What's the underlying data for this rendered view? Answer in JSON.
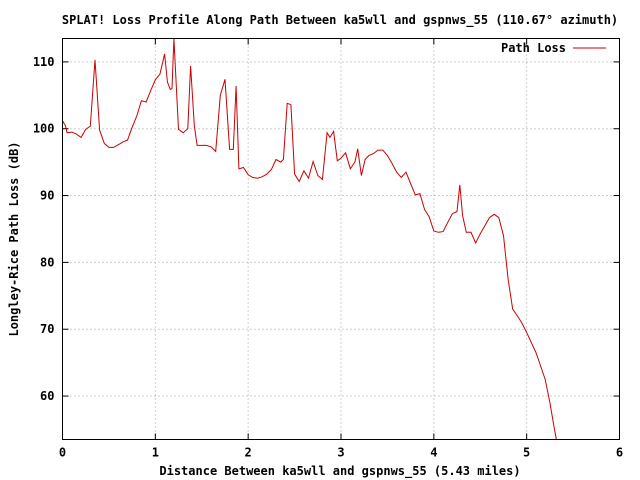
{
  "chart_data": {
    "type": "line",
    "title": "SPLAT! Loss Profile Along Path Between ka5wll and gspnws_55 (110.67° azimuth)",
    "xlabel": "Distance Between ka5wll and gspnws_55 (5.43 miles)",
    "ylabel": "Longley-Rice Path Loss (dB)",
    "xlim": [
      0,
      6
    ],
    "ylim": [
      53.5,
      113.5
    ],
    "x_ticks": [
      0,
      1,
      2,
      3,
      4,
      5,
      6
    ],
    "y_ticks": [
      60,
      70,
      80,
      90,
      100,
      110
    ],
    "x_tick_labels": [
      "0",
      "1",
      "2",
      "3",
      "4",
      "5",
      "6"
    ],
    "y_tick_labels": [
      "60",
      "70",
      "80",
      "90",
      "100",
      "110"
    ],
    "grid": true,
    "legend_position": "top-right",
    "series": [
      {
        "name": "Path Loss",
        "color": "#cc0000",
        "points": [
          [
            0.0,
            101.2
          ],
          [
            0.03,
            100.5
          ],
          [
            0.05,
            99.4
          ],
          [
            0.1,
            99.5
          ],
          [
            0.15,
            99.2
          ],
          [
            0.2,
            98.7
          ],
          [
            0.25,
            99.9
          ],
          [
            0.3,
            100.4
          ],
          [
            0.35,
            110.3
          ],
          [
            0.4,
            99.8
          ],
          [
            0.45,
            97.8
          ],
          [
            0.5,
            97.2
          ],
          [
            0.55,
            97.2
          ],
          [
            0.6,
            97.6
          ],
          [
            0.65,
            98.0
          ],
          [
            0.7,
            98.3
          ],
          [
            0.75,
            100.2
          ],
          [
            0.8,
            101.9
          ],
          [
            0.85,
            104.2
          ],
          [
            0.9,
            104.0
          ],
          [
            0.95,
            105.7
          ],
          [
            1.0,
            107.3
          ],
          [
            1.05,
            108.2
          ],
          [
            1.1,
            111.2
          ],
          [
            1.13,
            107.0
          ],
          [
            1.16,
            105.9
          ],
          [
            1.18,
            106.0
          ],
          [
            1.2,
            113.5
          ],
          [
            1.25,
            99.9
          ],
          [
            1.3,
            99.4
          ],
          [
            1.35,
            100.0
          ],
          [
            1.38,
            109.4
          ],
          [
            1.42,
            100.5
          ],
          [
            1.45,
            97.5
          ],
          [
            1.5,
            97.5
          ],
          [
            1.55,
            97.5
          ],
          [
            1.6,
            97.3
          ],
          [
            1.65,
            96.6
          ],
          [
            1.7,
            105.0
          ],
          [
            1.75,
            107.4
          ],
          [
            1.8,
            96.9
          ],
          [
            1.84,
            96.9
          ],
          [
            1.87,
            106.4
          ],
          [
            1.9,
            94.0
          ],
          [
            1.95,
            94.2
          ],
          [
            2.0,
            93.1
          ],
          [
            2.05,
            92.7
          ],
          [
            2.1,
            92.6
          ],
          [
            2.15,
            92.8
          ],
          [
            2.2,
            93.2
          ],
          [
            2.25,
            93.9
          ],
          [
            2.3,
            95.4
          ],
          [
            2.35,
            95.0
          ],
          [
            2.38,
            95.4
          ],
          [
            2.42,
            103.8
          ],
          [
            2.46,
            103.6
          ],
          [
            2.5,
            93.2
          ],
          [
            2.55,
            92.1
          ],
          [
            2.6,
            93.7
          ],
          [
            2.65,
            92.6
          ],
          [
            2.7,
            95.1
          ],
          [
            2.75,
            93.0
          ],
          [
            2.8,
            92.4
          ],
          [
            2.85,
            99.4
          ],
          [
            2.88,
            98.7
          ],
          [
            2.92,
            99.6
          ],
          [
            2.96,
            95.2
          ],
          [
            3.0,
            95.6
          ],
          [
            3.05,
            96.4
          ],
          [
            3.1,
            94.0
          ],
          [
            3.15,
            95.0
          ],
          [
            3.18,
            97.0
          ],
          [
            3.22,
            93.0
          ],
          [
            3.26,
            95.4
          ],
          [
            3.3,
            96.0
          ],
          [
            3.35,
            96.3
          ],
          [
            3.4,
            96.8
          ],
          [
            3.45,
            96.8
          ],
          [
            3.5,
            96.0
          ],
          [
            3.55,
            94.8
          ],
          [
            3.6,
            93.5
          ],
          [
            3.65,
            92.7
          ],
          [
            3.7,
            93.5
          ],
          [
            3.75,
            91.8
          ],
          [
            3.8,
            90.1
          ],
          [
            3.85,
            90.3
          ],
          [
            3.9,
            87.9
          ],
          [
            3.95,
            86.8
          ],
          [
            4.0,
            84.7
          ],
          [
            4.05,
            84.5
          ],
          [
            4.1,
            84.6
          ],
          [
            4.15,
            86.0
          ],
          [
            4.2,
            87.3
          ],
          [
            4.25,
            87.6
          ],
          [
            4.28,
            91.6
          ],
          [
            4.31,
            87.0
          ],
          [
            4.35,
            84.5
          ],
          [
            4.4,
            84.5
          ],
          [
            4.45,
            82.9
          ],
          [
            4.5,
            84.3
          ],
          [
            4.55,
            85.5
          ],
          [
            4.6,
            86.7
          ],
          [
            4.65,
            87.2
          ],
          [
            4.7,
            86.7
          ],
          [
            4.75,
            84.0
          ],
          [
            4.8,
            77.5
          ],
          [
            4.85,
            73.0
          ],
          [
            4.9,
            72.0
          ],
          [
            4.95,
            70.9
          ],
          [
            5.0,
            69.5
          ],
          [
            5.05,
            68.0
          ],
          [
            5.1,
            66.5
          ],
          [
            5.15,
            64.5
          ],
          [
            5.2,
            62.5
          ],
          [
            5.25,
            59.0
          ],
          [
            5.3,
            55.0
          ],
          [
            5.32,
            53.5
          ]
        ]
      }
    ]
  }
}
